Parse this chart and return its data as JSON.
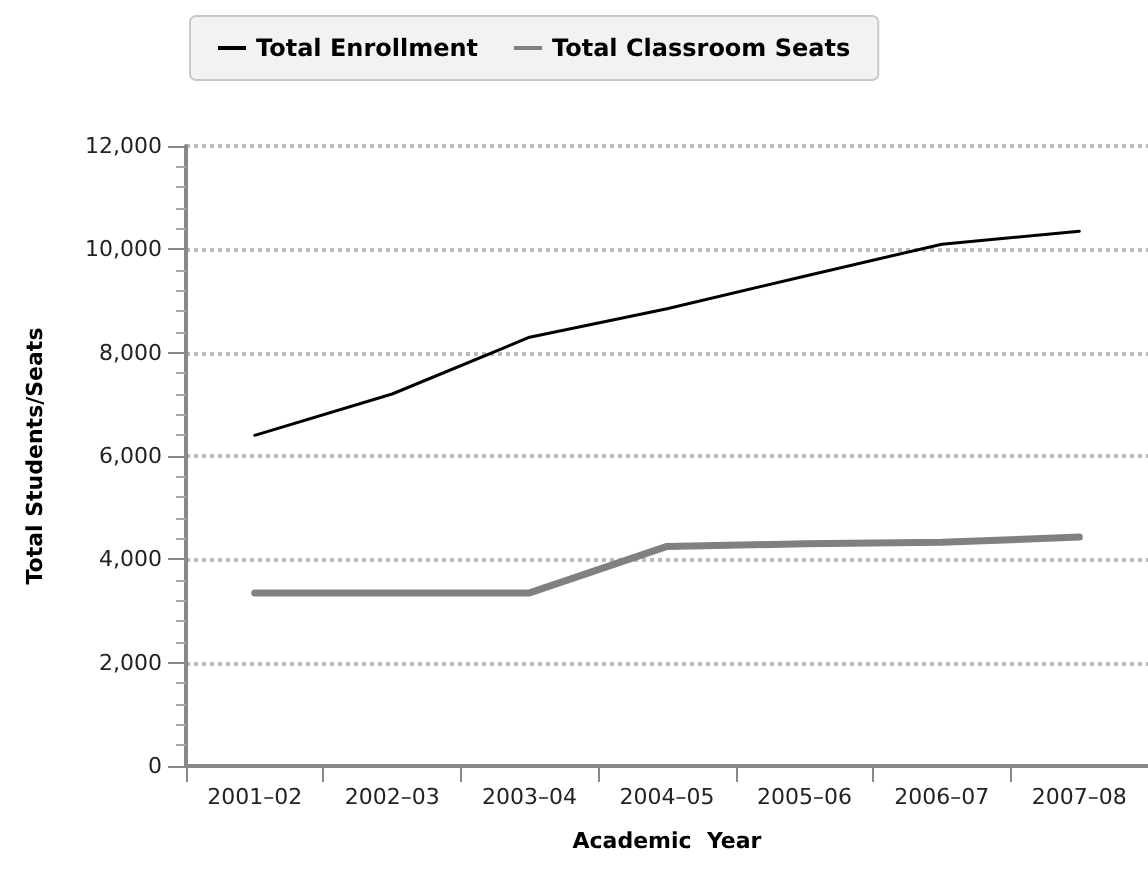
{
  "chart_data": {
    "type": "line",
    "xlabel": "Academic  Year",
    "ylabel": "Total Students/Seats",
    "categories": [
      "2001–02",
      "2002–03",
      "2003–04",
      "2004–05",
      "2005–06",
      "2006–07",
      "2007–08"
    ],
    "series": [
      {
        "name": "Total Enrollment",
        "color": "#000000",
        "values": [
          6400,
          7200,
          8300,
          8850,
          9480,
          10100,
          10350
        ]
      },
      {
        "name": "Total Classroom Seats",
        "color": "#808080",
        "values": [
          3350,
          3350,
          3350,
          4250,
          4300,
          4330,
          4430
        ]
      }
    ],
    "ylim": [
      0,
      12000
    ],
    "yticks": [
      {
        "value": 0,
        "label": "0"
      },
      {
        "value": 2000,
        "label": "2,000"
      },
      {
        "value": 4000,
        "label": "4,000"
      },
      {
        "value": 6000,
        "label": "6,000"
      },
      {
        "value": 8000,
        "label": "8,000"
      },
      {
        "value": 10000,
        "label": "10,000"
      },
      {
        "value": 12000,
        "label": "12,000"
      }
    ],
    "grid": "y",
    "legend": "top",
    "marker": "none",
    "line_style": "solid"
  }
}
